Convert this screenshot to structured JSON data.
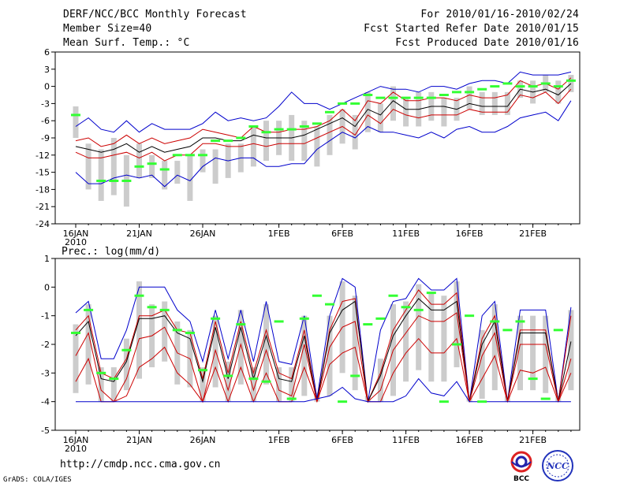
{
  "header": {
    "title": "DERF/NCC/BCC Monthly Forecast",
    "member_size": "Member Size=40",
    "variable1": "Mean Surf. Temp.: °C",
    "for_range": "For 2010/01/16-2010/02/24",
    "fcst_started": "Fcst Started Refer Date 2010/01/15",
    "fcst_produced": "Fcst Produced Date 2010/01/16"
  },
  "footer": {
    "url": "http://cmdp.ncc.cma.gov.cn",
    "grads": "GrADS: COLA/IGES",
    "logo_bcc": "BCC",
    "logo_ncc": "NCC"
  },
  "colors": {
    "ensemble_bar": "#cccccc",
    "observed": "#33ff33",
    "mean": "#000000",
    "spread": "#cc0000",
    "envelope": "#0000cc"
  },
  "chart_data": [
    {
      "type": "line",
      "title": "Mean Surf. Temp.: °C",
      "x_tick_labels": [
        "16JAN",
        "21JAN",
        "26JAN",
        "1FEB",
        "6FEB",
        "11FEB",
        "16FEB",
        "21FEB"
      ],
      "x_tick_days": [
        0,
        5,
        10,
        16,
        21,
        26,
        31,
        36
      ],
      "x_year_label": "2010",
      "ylim": [
        -24,
        6
      ],
      "yticks": [
        6,
        3,
        0,
        -3,
        -6,
        -9,
        -12,
        -15,
        -18,
        -21,
        -24
      ],
      "series": [
        {
          "name": "ensemble max",
          "values": [
            -7,
            -5.5,
            -7.5,
            -8,
            -6,
            -8,
            -6.5,
            -7.5,
            -7.5,
            -7.5,
            -6.5,
            -4.5,
            -6,
            -5.5,
            -6,
            -5.5,
            -3.5,
            -1,
            -3,
            -3,
            -4,
            -3,
            -2,
            -1,
            0,
            -0.5,
            -0.5,
            -1,
            0,
            0,
            -0.5,
            0.5,
            1,
            1,
            0.5,
            2.5,
            2,
            2,
            2,
            2.5
          ]
        },
        {
          "name": "upper spread",
          "values": [
            -9.5,
            -9,
            -10.5,
            -10,
            -8.5,
            -10,
            -9,
            -10,
            -9.5,
            -9,
            -7.5,
            -8,
            -8.5,
            -9,
            -7,
            -8,
            -8,
            -7.5,
            -7.5,
            -7,
            -6,
            -4,
            -6,
            -2.5,
            -3,
            -1,
            -2.5,
            -2.5,
            -2,
            -2,
            -2.5,
            -1.5,
            -2,
            -2,
            -1.5,
            1,
            0,
            0.5,
            -0.5,
            1.5
          ]
        },
        {
          "name": "ensemble mean",
          "values": [
            -10.5,
            -11,
            -11.5,
            -11,
            -10,
            -11.5,
            -10.5,
            -11.5,
            -11,
            -10.5,
            -9,
            -9,
            -9.5,
            -9.5,
            -8.5,
            -9,
            -9,
            -9,
            -8.5,
            -7.5,
            -6.5,
            -5.5,
            -7,
            -4,
            -5,
            -2.5,
            -4,
            -4,
            -3.5,
            -3.5,
            -4,
            -3,
            -3.5,
            -3.5,
            -3.5,
            -0.5,
            -1,
            -0.5,
            -1.5,
            0.5
          ]
        },
        {
          "name": "lower spread",
          "values": [
            -11.5,
            -12.5,
            -12.5,
            -12,
            -11.5,
            -12.5,
            -11.5,
            -13,
            -12,
            -12,
            -10,
            -10,
            -10.5,
            -10.5,
            -10,
            -10.5,
            -10,
            -10,
            -10,
            -9,
            -8,
            -7,
            -8.5,
            -5,
            -6.5,
            -4,
            -5,
            -5.5,
            -5,
            -5,
            -5,
            -4,
            -4.5,
            -4.5,
            -4.5,
            -1.5,
            -2,
            -1,
            -3,
            -0.5
          ]
        },
        {
          "name": "ensemble min",
          "values": [
            -15,
            -17,
            -17,
            -16,
            -15.5,
            -16,
            -15.5,
            -17.5,
            -15.5,
            -16.5,
            -14,
            -12.5,
            -13,
            -12.5,
            -12.5,
            -14,
            -14,
            -13.5,
            -13.5,
            -11,
            -9.5,
            -8,
            -9,
            -7,
            -8,
            -8,
            -8.5,
            -9,
            -8,
            -9,
            -7.5,
            -7,
            -8,
            -8,
            -7,
            -5.5,
            -5,
            -4.5,
            -6,
            -2.5
          ]
        },
        {
          "name": "observed",
          "values": [
            -5,
            null,
            -16.5,
            -16.5,
            -16.5,
            -14,
            -13.5,
            -14.5,
            -12,
            -12,
            -12,
            -9.5,
            -9.5,
            -9,
            -7,
            -8,
            -7.5,
            -7.5,
            -7,
            -6.5,
            -4.5,
            -3,
            -3,
            -1.5,
            -2,
            -2,
            -2,
            -2,
            -2,
            -1.5,
            -1,
            -1,
            -0.5,
            0,
            0.5,
            0,
            0,
            0.5,
            0,
            1
          ]
        }
      ],
      "ensemble_bars": [
        [
          -3.5,
          -9
        ],
        [
          -10,
          -18
        ],
        [
          -11,
          -20
        ],
        [
          -9,
          -19
        ],
        [
          -12,
          -21
        ],
        [
          -10,
          -16
        ],
        [
          -12,
          -16
        ],
        [
          -13,
          -18
        ],
        [
          -13,
          -17
        ],
        [
          -12,
          -20
        ],
        [
          -11,
          -15
        ],
        [
          -11,
          -17
        ],
        [
          -10,
          -16
        ],
        [
          -10,
          -15
        ],
        [
          -7,
          -14
        ],
        [
          -6,
          -13
        ],
        [
          -6,
          -12
        ],
        [
          -5,
          -13
        ],
        [
          -6,
          -13
        ],
        [
          -7,
          -14
        ],
        [
          -5,
          -12
        ],
        [
          -4,
          -10
        ],
        [
          -5,
          -11
        ],
        [
          -1,
          -8
        ],
        [
          -3,
          -8
        ],
        [
          0,
          -6
        ],
        [
          -2,
          -7
        ],
        [
          -1,
          -7
        ],
        [
          -1,
          -6
        ],
        [
          -2,
          -7
        ],
        [
          -2,
          -6
        ],
        [
          0,
          -4
        ],
        [
          -1,
          -5
        ],
        [
          -1,
          -5
        ],
        [
          -1,
          -5
        ],
        [
          1,
          -2
        ],
        [
          1,
          -3
        ],
        [
          2,
          -1
        ],
        [
          1,
          -3
        ],
        [
          2,
          -1
        ]
      ]
    },
    {
      "type": "line",
      "title": "Prec.: log(mm/d)",
      "x_tick_labels": [
        "16JAN",
        "21JAN",
        "26JAN",
        "1FEB",
        "6FEB",
        "11FEB",
        "16FEB",
        "21FEB"
      ],
      "x_tick_days": [
        0,
        5,
        10,
        16,
        21,
        26,
        31,
        36
      ],
      "x_year_label": "2010",
      "ylim": [
        -5,
        1
      ],
      "yticks": [
        1,
        0,
        -1,
        -2,
        -3,
        -4,
        -5
      ],
      "series": [
        {
          "name": "ensemble max",
          "values": [
            -0.9,
            -0.5,
            -2.5,
            -2.5,
            -1.5,
            0,
            0,
            0,
            -0.8,
            -1.2,
            -2.6,
            -0.8,
            -2.5,
            -0.8,
            -2.6,
            -0.5,
            -2.6,
            -2.7,
            -1,
            -3.9,
            -1,
            0.3,
            0,
            -4,
            -1.5,
            -0.5,
            -0.4,
            0.3,
            -0.1,
            -0.1,
            0.3,
            -4,
            -1,
            -0.5,
            -4,
            -0.8,
            -0.8,
            -0.8,
            -4,
            -0.7
          ]
        },
        {
          "name": "upper spread",
          "values": [
            -1.5,
            -1,
            -3,
            -3.2,
            -2.5,
            -1,
            -1,
            -0.8,
            -1.5,
            -1.6,
            -3.2,
            -1.2,
            -3,
            -1.2,
            -3,
            -1.5,
            -3,
            -3.2,
            -1.5,
            -4,
            -1.5,
            -0.5,
            -0.4,
            -4,
            -3,
            -1.5,
            -0.8,
            -0.1,
            -0.6,
            -0.6,
            -0.2,
            -4,
            -1.8,
            -1,
            -4,
            -1.5,
            -1.5,
            -1.5,
            -4,
            -1
          ]
        },
        {
          "name": "ensemble mean",
          "values": [
            -1.7,
            -1.2,
            -3.2,
            -3.3,
            -2.6,
            -1.1,
            -1.1,
            -1,
            -1.6,
            -1.8,
            -3.3,
            -1.4,
            -3.2,
            -1.4,
            -3.2,
            -1.7,
            -3.2,
            -3.3,
            -1.7,
            -4,
            -1.6,
            -0.8,
            -0.5,
            -4,
            -3.1,
            -1.7,
            -1,
            -0.4,
            -0.8,
            -0.8,
            -0.5,
            -4,
            -2,
            -1.2,
            -4,
            -1.6,
            -1.6,
            -1.6,
            -4,
            -1.9
          ]
        },
        {
          "name": "lower spread",
          "values": [
            -2.4,
            -1.6,
            -3.6,
            -4,
            -3.2,
            -1.8,
            -1.7,
            -1.4,
            -2.3,
            -2.5,
            -4,
            -2.2,
            -3.6,
            -2,
            -3.6,
            -2.2,
            -3.6,
            -3.8,
            -2,
            -4,
            -2.1,
            -1.4,
            -1.2,
            -4,
            -3.6,
            -2.2,
            -1.6,
            -1,
            -1.2,
            -1.2,
            -0.9,
            -4,
            -2.4,
            -1.6,
            -4,
            -2,
            -2,
            -2,
            -4,
            -2.5
          ]
        },
        {
          "name": "lowest spread",
          "values": [
            -3.3,
            -2.5,
            -4,
            -4,
            -3.8,
            -2.8,
            -2.5,
            -2.1,
            -3,
            -3.4,
            -4,
            -2.8,
            -4,
            -2.8,
            -4,
            -3,
            -4,
            -4,
            -2.8,
            -4,
            -2.7,
            -2.3,
            -2.1,
            -4,
            -4,
            -3,
            -2.3,
            -1.8,
            -2.3,
            -2.3,
            -1.8,
            -4,
            -3.2,
            -2.4,
            -4,
            -2.9,
            -3,
            -2.8,
            -4,
            -3
          ]
        },
        {
          "name": "ensemble min",
          "values": [
            -4,
            -4,
            -4,
            -4,
            -4,
            -4,
            -4,
            -4,
            -4,
            -4,
            -4,
            -4,
            -4,
            -4,
            -4,
            -4,
            -4,
            -4,
            -4,
            -3.9,
            -3.8,
            -3.5,
            -3.9,
            -4,
            -4,
            -4,
            -3.8,
            -3.2,
            -3.7,
            -3.8,
            -3.3,
            -4,
            -4,
            -4,
            -4,
            -4,
            -4,
            -4,
            -4,
            -4
          ]
        },
        {
          "name": "observed",
          "values": [
            -1.6,
            -0.8,
            -3,
            -3.2,
            -2.2,
            -0.3,
            -0.7,
            -0.8,
            -1.5,
            -1.6,
            -2.9,
            -1.1,
            -3.1,
            -1.3,
            -3.2,
            -3.3,
            -1.2,
            -3.9,
            -1.1,
            -0.3,
            -0.6,
            -4,
            -3.1,
            -1.3,
            -1.1,
            -0.3,
            -0.7,
            -0.8,
            -0.2,
            -4,
            -2,
            -1,
            -4,
            -1.2,
            -1.5,
            -1.2,
            -3.2,
            -3.9,
            -1.5,
            null
          ]
        }
      ],
      "ensemble_bars": [
        [
          -1.3,
          -3.7
        ],
        [
          -0.6,
          -3.4
        ],
        [
          -2.8,
          -4
        ],
        [
          -2.8,
          -4
        ],
        [
          -1.8,
          -3.6
        ],
        [
          0.2,
          -3.2
        ],
        [
          -0.6,
          -2.8
        ],
        [
          -0.5,
          -2.6
        ],
        [
          -1.2,
          -3.4
        ],
        [
          -1.5,
          -3.5
        ],
        [
          -2.8,
          -4
        ],
        [
          -1,
          -3.5
        ],
        [
          -2.6,
          -4
        ],
        [
          -0.8,
          -3.4
        ],
        [
          -2.8,
          -4
        ],
        [
          -0.6,
          -3.4
        ],
        [
          -2.8,
          -4
        ],
        [
          -2.8,
          -4
        ],
        [
          -1,
          -3.8
        ],
        [
          -3.7,
          -4
        ],
        [
          -1,
          -3.8
        ],
        [
          0.2,
          -3
        ],
        [
          -0.3,
          -3.6
        ],
        [
          -3.8,
          -4
        ],
        [
          -2.5,
          -4
        ],
        [
          -0.6,
          -3.8
        ],
        [
          -0.5,
          -3.3
        ],
        [
          0.1,
          -2.9
        ],
        [
          -0.2,
          -3.3
        ],
        [
          -0.3,
          -3.3
        ],
        [
          0.2,
          -2.8
        ],
        [
          -3.8,
          -4
        ],
        [
          -1.5,
          -3.9
        ],
        [
          -0.6,
          -3.6
        ],
        [
          -3.8,
          -4
        ],
        [
          -1,
          -3.6
        ],
        [
          -1,
          -3.6
        ],
        [
          -1,
          -3.7
        ],
        [
          -3.8,
          -4
        ],
        [
          -0.8,
          -3.6
        ]
      ]
    }
  ]
}
